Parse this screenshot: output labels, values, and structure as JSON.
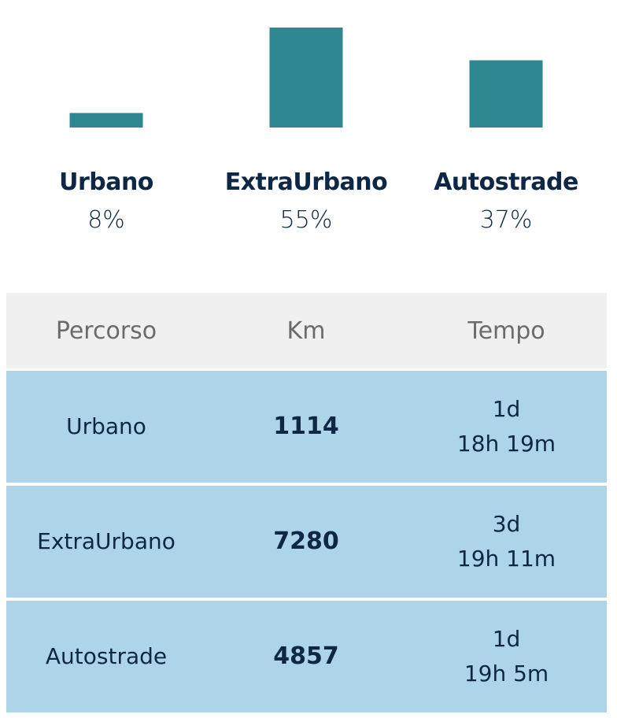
{
  "chart_data": {
    "type": "bar",
    "title": "",
    "categories": [
      "Urbano",
      "ExtraUrbano",
      "Autostrade"
    ],
    "values": [
      8,
      55,
      37
    ],
    "value_labels": [
      "8%",
      "55%",
      "37%"
    ],
    "unit": "%",
    "ylim": [
      0,
      55
    ],
    "grid": false,
    "color": "#2f8891"
  },
  "table": {
    "headers": [
      "Percorso",
      "Km",
      "Tempo"
    ],
    "rows": [
      {
        "percorso": "Urbano",
        "km": "1114",
        "days": "1d",
        "time": "18h 19m"
      },
      {
        "percorso": "ExtraUrbano",
        "km": "7280",
        "days": "3d",
        "time": "19h 11m"
      },
      {
        "percorso": "Autostrade",
        "km": "4857",
        "days": "1d",
        "time": "19h 5m"
      }
    ]
  }
}
